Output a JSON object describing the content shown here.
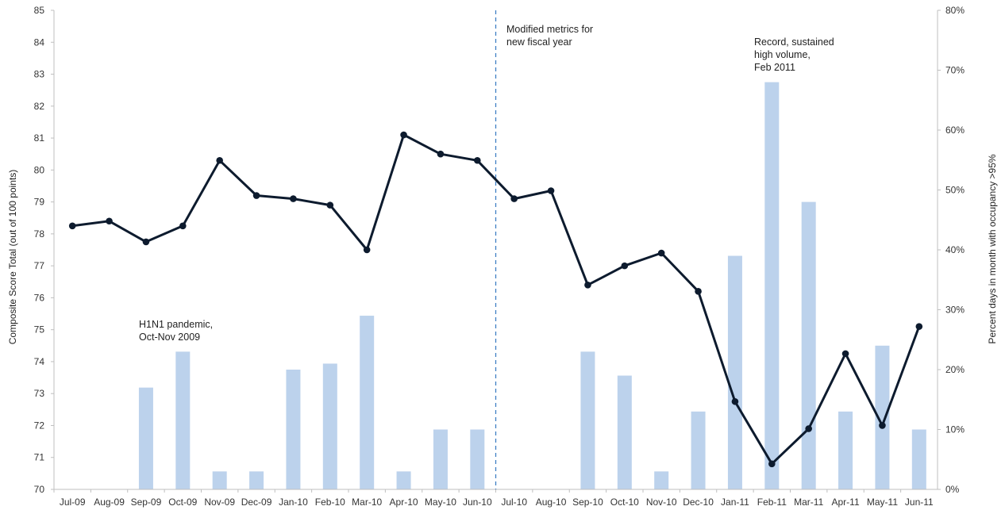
{
  "chart_data": {
    "type": "bar+line",
    "title": "",
    "categories": [
      "Jul-09",
      "Aug-09",
      "Sep-09",
      "Oct-09",
      "Nov-09",
      "Dec-09",
      "Jan-10",
      "Feb-10",
      "Mar-10",
      "Apr-10",
      "May-10",
      "Jun-10",
      "Jul-10",
      "Aug-10",
      "Sep-10",
      "Oct-10",
      "Nov-10",
      "Dec-10",
      "Jan-11",
      "Feb-11",
      "Mar-11",
      "Apr-11",
      "May-11",
      "Jun-11"
    ],
    "series": [
      {
        "name": "",
        "kind": "line",
        "axis": "left",
        "color": "#0d1b2e",
        "values": [
          78.25,
          78.4,
          77.75,
          78.25,
          80.3,
          79.2,
          79.1,
          78.9,
          77.5,
          81.1,
          80.5,
          80.3,
          79.1,
          79.35,
          76.4,
          77.0,
          77.4,
          76.2,
          72.75,
          70.8,
          71.9,
          74.25,
          72.0,
          75.1
        ]
      },
      {
        "name": "",
        "kind": "bar",
        "axis": "right",
        "color": "#bcd2ec",
        "values": [
          0,
          0,
          17,
          23,
          3,
          3,
          20,
          21,
          29,
          3,
          10,
          10,
          0,
          0,
          23,
          19,
          3,
          13,
          39,
          68,
          48,
          13,
          24,
          10
        ]
      }
    ],
    "y_left": {
      "label": "Composite Score Total (out of 100 points)",
      "min": 70,
      "max": 85,
      "step": 1,
      "ticks": [
        "70",
        "71",
        "72",
        "73",
        "74",
        "75",
        "76",
        "77",
        "78",
        "79",
        "80",
        "81",
        "82",
        "83",
        "84",
        "85"
      ]
    },
    "y_right": {
      "label": "Percent days in month with occupancy >95%",
      "min": 0,
      "max": 80,
      "step": 10,
      "ticks": [
        "0%",
        "10%",
        "20%",
        "30%",
        "40%",
        "50%",
        "60%",
        "70%",
        "80%"
      ]
    },
    "divider_after_category": "Jun-10",
    "annotations": [
      {
        "lines": [
          "H1N1 pandemic,",
          "Oct-Nov 2009"
        ]
      },
      {
        "lines": [
          "Modified metrics for",
          "new fiscal year"
        ]
      },
      {
        "lines": [
          "Record, sustained",
          "high volume,",
          "Feb 2011"
        ]
      }
    ],
    "grid": false,
    "legend": "none"
  }
}
